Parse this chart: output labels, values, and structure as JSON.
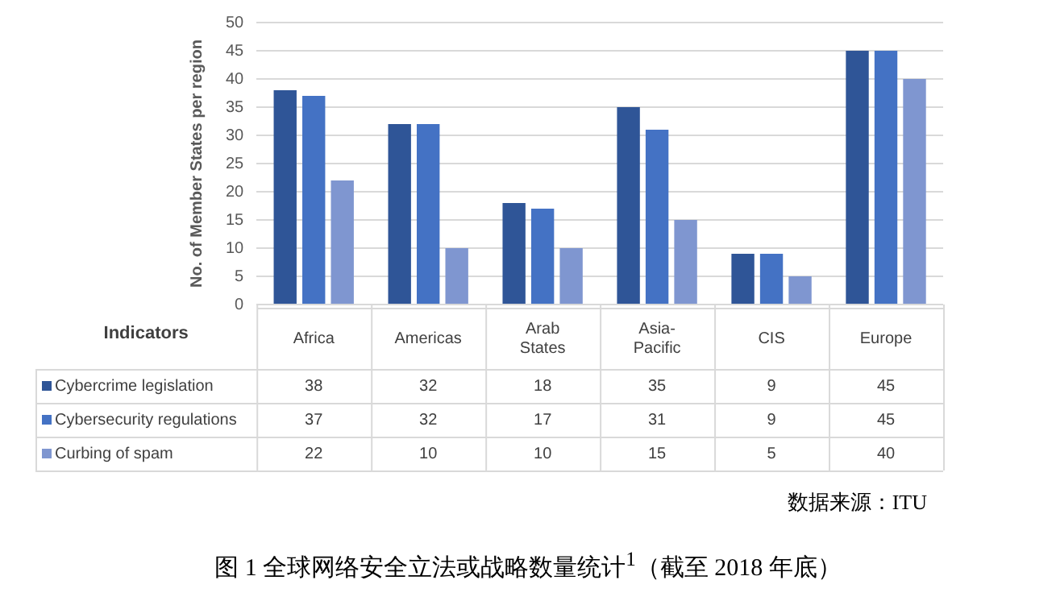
{
  "chart_data": {
    "type": "bar",
    "title": "图 1 全球网络安全立法或战略数量统计$^{1}$（截至 2018 年底）",
    "ylabel": "No. of Member States per region",
    "legend_title": "Indicators",
    "annotations": [
      "数据来源：ITU"
    ],
    "categories": [
      "Africa",
      "Americas",
      "Arab States",
      "Asia-Pacific",
      "CIS",
      "Europe"
    ],
    "series": [
      {
        "name": "Cybercrime legislation",
        "color": "#2f5597",
        "values": [
          38,
          32,
          18,
          35,
          9,
          45
        ]
      },
      {
        "name": "Cybersecurity regulations",
        "color": "#4472c4",
        "values": [
          37,
          32,
          17,
          31,
          9,
          45
        ]
      },
      {
        "name": "Curbing of spam",
        "color": "#7f96d0",
        "values": [
          22,
          10,
          10,
          15,
          5,
          40
        ]
      }
    ],
    "ylim": [
      0,
      50
    ],
    "yticks": [
      0,
      5,
      10,
      15,
      20,
      25,
      30,
      35,
      40,
      45,
      50
    ],
    "grid": "y",
    "legend": "bottom left",
    "data_labels": true
  }
}
